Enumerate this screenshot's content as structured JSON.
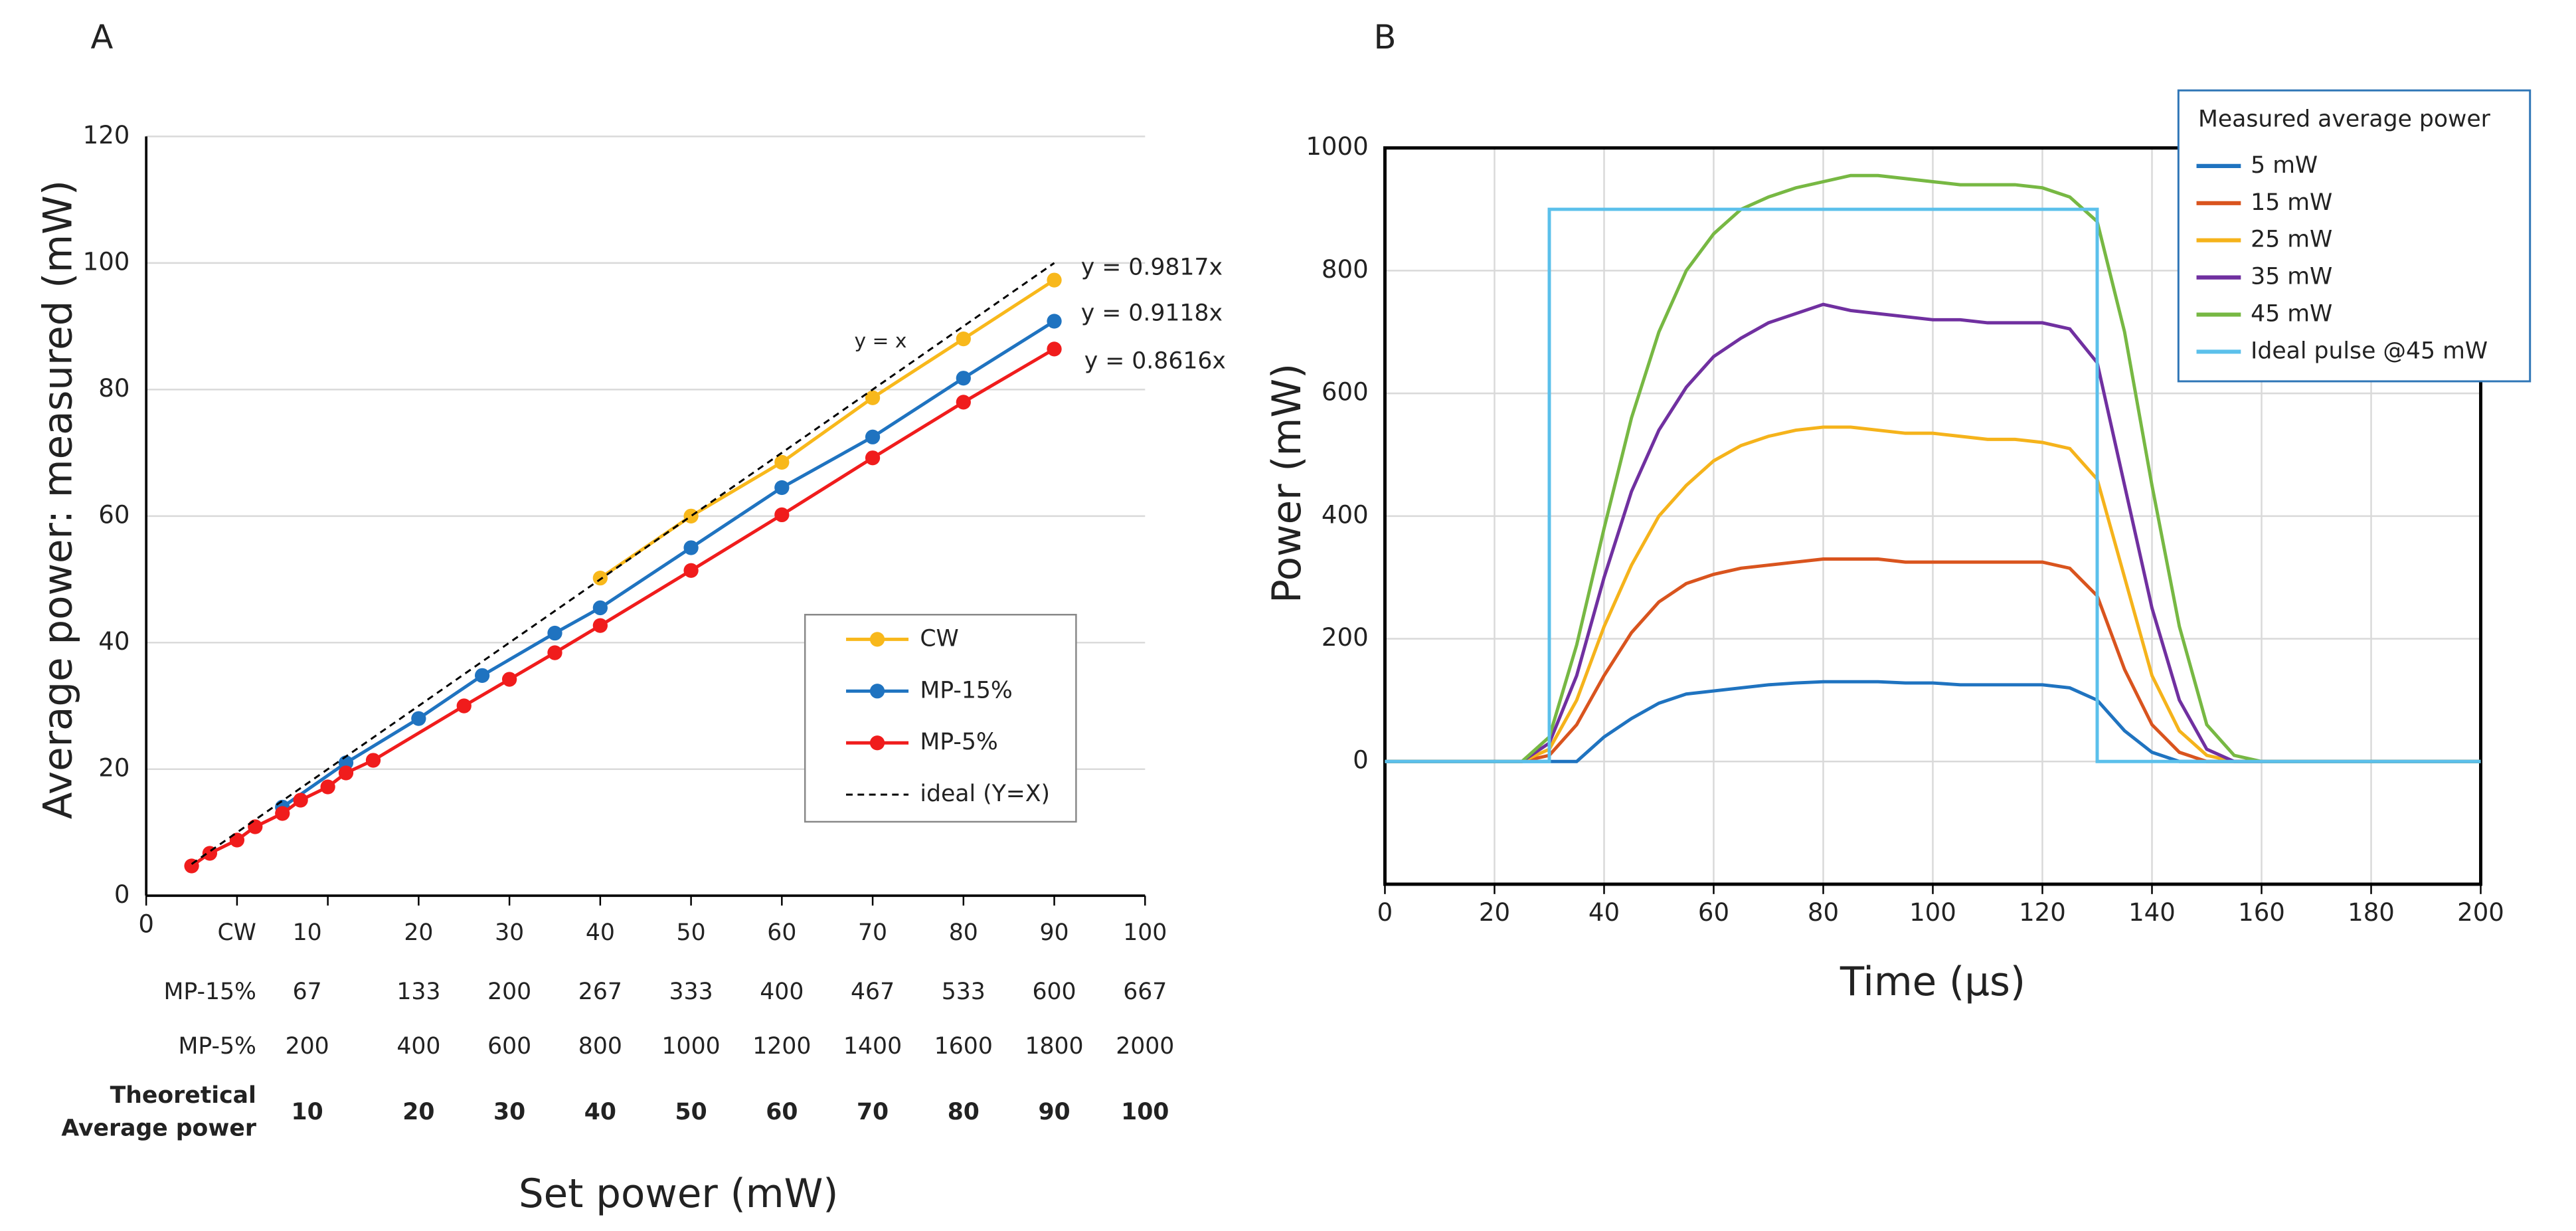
{
  "chart_data": [
    {
      "type": "line",
      "panel": "A",
      "xlabel": "Set power (mW)",
      "ylabel": "Average power: measured (mW)",
      "xlim": [
        0,
        110
      ],
      "ylim": [
        0,
        120
      ],
      "xticks": [
        0
      ],
      "yticks": [
        0,
        20,
        40,
        60,
        80,
        100,
        120
      ],
      "grid": true,
      "legend": "lower right",
      "series": [
        {
          "name": "CW",
          "color": "#f8b81b",
          "x": [
            50,
            60,
            70,
            80,
            90,
            100
          ],
          "values": [
            50.2,
            60,
            68.5,
            78.7,
            88,
            97.3
          ]
        },
        {
          "name": "MP-15%",
          "color": "#1f73c0",
          "x": [
            15,
            22,
            30,
            37,
            45,
            50,
            60,
            70,
            80,
            90,
            100
          ],
          "values": [
            14,
            21,
            28,
            34.8,
            41.5,
            45.5,
            55,
            64.5,
            72.5,
            81.8,
            90.8
          ]
        },
        {
          "name": "MP-5%",
          "color": "#f01c1c",
          "x": [
            5,
            7,
            10,
            12,
            15,
            17,
            20,
            22,
            25,
            35,
            40,
            45,
            50,
            60,
            70,
            80,
            90,
            100
          ],
          "values": [
            4.7,
            6.7,
            8.8,
            10.9,
            13,
            15.1,
            17.2,
            19.4,
            21.4,
            30,
            34.2,
            38.4,
            42.7,
            51.4,
            60.2,
            69.2,
            78,
            86.4
          ]
        },
        {
          "name": "ideal (Y=X)",
          "color": "#000000",
          "dashed": true,
          "x": [
            5,
            100
          ],
          "values": [
            5,
            100
          ]
        }
      ],
      "annotations": [
        "y = 0.9817x",
        "y = 0.9118x",
        "y = 0.8616x",
        "y = x"
      ],
      "table": {
        "rows": [
          {
            "label": [
              "CW"
            ],
            "values": [
              10,
              20,
              30,
              40,
              50,
              60,
              70,
              80,
              90,
              100
            ]
          },
          {
            "label": [
              "MP-15%"
            ],
            "values": [
              67,
              133,
              200,
              267,
              333,
              400,
              467,
              533,
              600,
              667
            ]
          },
          {
            "label": [
              "MP-5%"
            ],
            "values": [
              200,
              400,
              600,
              800,
              1000,
              1200,
              1400,
              1600,
              1800,
              2000
            ]
          },
          {
            "label": [
              "Theoretical",
              "Average power"
            ],
            "bold": true,
            "values": [
              10,
              20,
              30,
              40,
              50,
              60,
              70,
              80,
              90,
              100
            ]
          }
        ]
      }
    },
    {
      "type": "line",
      "panel": "B",
      "xlabel": "Time (µs)",
      "ylabel": "Power (mW)",
      "legend_title": "Measured average power",
      "xlim": [
        0,
        200
      ],
      "ylim": [
        -200,
        1000
      ],
      "xticks": [
        0,
        20,
        40,
        60,
        80,
        100,
        120,
        140,
        160,
        180,
        200
      ],
      "yticks": [
        0,
        200,
        400,
        600,
        800,
        1000
      ],
      "grid": true,
      "legend": "upper right",
      "x": [
        0,
        5,
        10,
        15,
        20,
        25,
        30,
        35,
        40,
        45,
        50,
        55,
        60,
        65,
        70,
        75,
        80,
        85,
        90,
        95,
        100,
        105,
        110,
        115,
        120,
        125,
        130,
        135,
        140,
        145,
        150,
        155,
        160,
        165,
        170,
        175,
        180,
        185,
        190,
        195,
        200
      ],
      "series": [
        {
          "name": "5 mW",
          "color": "#1f73c0",
          "values": [
            0,
            0,
            0,
            0,
            0,
            0,
            0,
            0,
            40,
            70,
            95,
            110,
            115,
            120,
            125,
            128,
            130,
            130,
            130,
            128,
            128,
            125,
            125,
            125,
            125,
            120,
            100,
            50,
            15,
            0,
            0,
            0,
            0,
            0,
            0,
            0,
            0,
            0,
            0,
            0,
            0
          ]
        },
        {
          "name": "15 mW",
          "color": "#d9541e",
          "values": [
            0,
            0,
            0,
            0,
            0,
            0,
            10,
            60,
            140,
            210,
            260,
            290,
            305,
            315,
            320,
            325,
            330,
            330,
            330,
            325,
            325,
            325,
            325,
            325,
            325,
            315,
            270,
            150,
            60,
            15,
            0,
            0,
            0,
            0,
            0,
            0,
            0,
            0,
            0,
            0,
            0
          ]
        },
        {
          "name": "25 mW",
          "color": "#f5b31b",
          "values": [
            0,
            0,
            0,
            0,
            0,
            0,
            20,
            100,
            220,
            320,
            400,
            450,
            490,
            515,
            530,
            540,
            545,
            545,
            540,
            535,
            535,
            530,
            525,
            525,
            520,
            510,
            460,
            300,
            140,
            50,
            10,
            0,
            0,
            0,
            0,
            0,
            0,
            0,
            0,
            0,
            0
          ]
        },
        {
          "name": "35 mW",
          "color": "#7030a0",
          "values": [
            0,
            0,
            0,
            0,
            0,
            0,
            30,
            140,
            300,
            440,
            540,
            610,
            660,
            690,
            715,
            730,
            745,
            735,
            730,
            725,
            720,
            720,
            715,
            715,
            715,
            705,
            650,
            450,
            250,
            100,
            20,
            0,
            0,
            0,
            0,
            0,
            0,
            0,
            0,
            0,
            0
          ]
        },
        {
          "name": "45 mW",
          "color": "#77b843",
          "values": [
            0,
            0,
            0,
            0,
            0,
            0,
            40,
            190,
            380,
            560,
            700,
            800,
            860,
            900,
            920,
            935,
            945,
            955,
            955,
            950,
            945,
            940,
            940,
            940,
            935,
            920,
            880,
            700,
            450,
            220,
            60,
            10,
            0,
            0,
            0,
            0,
            0,
            0,
            0,
            0,
            0
          ]
        },
        {
          "name": "Ideal pulse @45 mW",
          "color": "#5bc0eb",
          "x": [
            0,
            30,
            30,
            130,
            130,
            200
          ],
          "values": [
            0,
            0,
            900,
            900,
            0,
            0
          ]
        }
      ]
    }
  ]
}
